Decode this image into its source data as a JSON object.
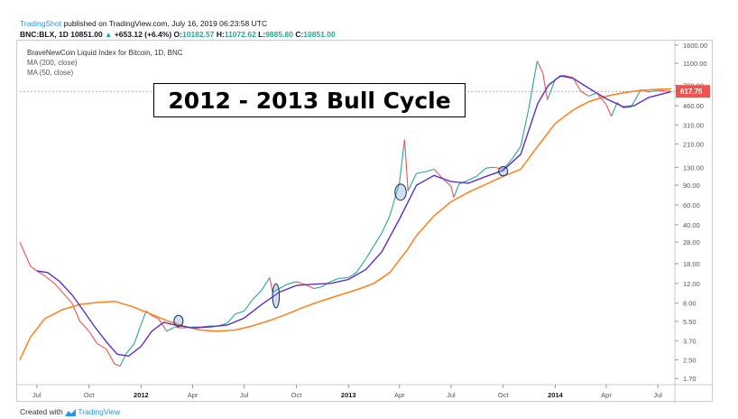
{
  "header": {
    "brand": "TradingShot",
    "published": "published on TradingView.com, July 16, 2019 06:23:58 UTC",
    "symbol": "BNC:BLX, 1D",
    "last": "10851.00",
    "change_arrow": "▲",
    "change": "+653.12 (+6.4%)",
    "o_label": "O:",
    "o_val": "10182.57",
    "h_label": "H:",
    "h_val": "11072.62",
    "l_label": "L:",
    "l_val": "9885.80",
    "c_label": "C:",
    "c_val": "10851.00"
  },
  "legend": {
    "title": "BraveNewCoin Liquid Index for Bitcoin, 1D, BNC",
    "ma200": "MA (200, close)",
    "ma50": "MA (50, close)"
  },
  "banner": "2012 - 2013 Bull Cycle",
  "footer": {
    "created": "Created with",
    "tv": "TradingView"
  },
  "colors": {
    "ma200": "#ff7f1a",
    "ma50": "#5b2ecc",
    "up": "#26a69a",
    "down": "#ef5350",
    "price_label": "#ef5350"
  },
  "chart_data": {
    "type": "line",
    "scale": "log",
    "ylim": [
      1.5,
      1750
    ],
    "y_ticks": [
      1600,
      1100,
      700,
      460,
      310,
      210,
      130,
      90,
      60,
      40,
      28,
      18,
      12,
      8,
      5.5,
      3.7,
      2.5,
      1.7
    ],
    "y_tick_labels": [
      "1600.00",
      "1100.00",
      "700.00",
      "460.00",
      "310.00",
      "210.00",
      "130.00",
      "90.00",
      "60.00",
      "40.00",
      "28.00",
      "18.00",
      "12.00",
      "8.00",
      "5.50",
      "3.70",
      "2.50",
      "1.70"
    ],
    "x_range": [
      "2011-06-01",
      "2014-07-31"
    ],
    "x_ticks": [
      {
        "date": "2011-07-01",
        "label": "Jul",
        "bold": false
      },
      {
        "date": "2011-10-01",
        "label": "Oct",
        "bold": false
      },
      {
        "date": "2012-01-01",
        "label": "2012",
        "bold": true
      },
      {
        "date": "2012-04-01",
        "label": "Apr",
        "bold": false
      },
      {
        "date": "2012-07-01",
        "label": "Jul",
        "bold": false
      },
      {
        "date": "2012-10-01",
        "label": "Oct",
        "bold": false
      },
      {
        "date": "2013-01-01",
        "label": "2013",
        "bold": true
      },
      {
        "date": "2013-04-01",
        "label": "Apr",
        "bold": false
      },
      {
        "date": "2013-07-01",
        "label": "Jul",
        "bold": false
      },
      {
        "date": "2013-10-01",
        "label": "Oct",
        "bold": false
      },
      {
        "date": "2014-01-01",
        "label": "2014",
        "bold": true
      },
      {
        "date": "2014-04-01",
        "label": "Apr",
        "bold": false
      },
      {
        "date": "2014-07-01",
        "label": "Jul",
        "bold": false
      }
    ],
    "last_price_label": "617.75",
    "last_price": 617.75,
    "series": [
      {
        "key": "price",
        "points": [
          [
            "2011-06-01",
            28
          ],
          [
            "2011-06-10",
            22
          ],
          [
            "2011-06-20",
            17
          ],
          [
            "2011-07-01",
            15.5
          ],
          [
            "2011-07-15",
            14
          ],
          [
            "2011-08-01",
            12
          ],
          [
            "2011-08-15",
            10
          ],
          [
            "2011-09-01",
            8
          ],
          [
            "2011-09-15",
            5.5
          ],
          [
            "2011-10-01",
            4.5
          ],
          [
            "2011-10-15",
            3.5
          ],
          [
            "2011-11-01",
            3.1
          ],
          [
            "2011-11-15",
            2.3
          ],
          [
            "2011-11-25",
            2.2
          ],
          [
            "2011-12-05",
            2.8
          ],
          [
            "2011-12-20",
            3.5
          ],
          [
            "2012-01-01",
            5.2
          ],
          [
            "2012-01-10",
            6.8
          ],
          [
            "2012-01-20",
            6.2
          ],
          [
            "2012-02-01",
            5.8
          ],
          [
            "2012-02-15",
            4.5
          ],
          [
            "2012-03-01",
            4.9
          ],
          [
            "2012-03-15",
            4.8
          ],
          [
            "2012-04-01",
            4.9
          ],
          [
            "2012-04-15",
            4.9
          ],
          [
            "2012-05-01",
            5.0
          ],
          [
            "2012-05-15",
            5.0
          ],
          [
            "2012-06-01",
            5.3
          ],
          [
            "2012-06-15",
            6.4
          ],
          [
            "2012-07-01",
            6.8
          ],
          [
            "2012-07-15",
            8.5
          ],
          [
            "2012-08-01",
            10.5
          ],
          [
            "2012-08-15",
            13.5
          ],
          [
            "2012-08-20",
            10
          ],
          [
            "2012-09-01",
            10.8
          ],
          [
            "2012-09-15",
            11.8
          ],
          [
            "2012-10-01",
            12.4
          ],
          [
            "2012-10-15",
            11.8
          ],
          [
            "2012-11-01",
            10.8
          ],
          [
            "2012-11-15",
            11.2
          ],
          [
            "2012-12-01",
            12.5
          ],
          [
            "2012-12-15",
            13.3
          ],
          [
            "2013-01-01",
            13.5
          ],
          [
            "2013-01-15",
            15
          ],
          [
            "2013-02-01",
            20
          ],
          [
            "2013-02-15",
            26
          ],
          [
            "2013-03-01",
            34
          ],
          [
            "2013-03-15",
            48
          ],
          [
            "2013-04-01",
            95
          ],
          [
            "2013-04-10",
            230
          ],
          [
            "2013-04-16",
            80
          ],
          [
            "2013-05-01",
            115
          ],
          [
            "2013-05-15",
            118
          ],
          [
            "2013-06-01",
            125
          ],
          [
            "2013-06-15",
            105
          ],
          [
            "2013-07-01",
            88
          ],
          [
            "2013-07-06",
            70
          ],
          [
            "2013-07-15",
            92
          ],
          [
            "2013-08-01",
            100
          ],
          [
            "2013-08-15",
            108
          ],
          [
            "2013-09-01",
            128
          ],
          [
            "2013-09-15",
            130
          ],
          [
            "2013-10-01",
            125
          ],
          [
            "2013-10-15",
            150
          ],
          [
            "2013-11-01",
            200
          ],
          [
            "2013-11-15",
            430
          ],
          [
            "2013-11-30",
            1150
          ],
          [
            "2013-12-10",
            900
          ],
          [
            "2013-12-18",
            520
          ],
          [
            "2014-01-01",
            790
          ],
          [
            "2014-01-15",
            860
          ],
          [
            "2014-02-01",
            820
          ],
          [
            "2014-02-15",
            620
          ],
          [
            "2014-03-01",
            560
          ],
          [
            "2014-03-15",
            600
          ],
          [
            "2014-04-01",
            470
          ],
          [
            "2014-04-10",
            370
          ],
          [
            "2014-04-20",
            490
          ],
          [
            "2014-05-01",
            440
          ],
          [
            "2014-05-15",
            450
          ],
          [
            "2014-06-01",
            640
          ],
          [
            "2014-06-15",
            610
          ],
          [
            "2014-07-01",
            630
          ],
          [
            "2014-07-15",
            620
          ],
          [
            "2014-07-25",
            617
          ]
        ]
      },
      {
        "key": "ma50",
        "points": [
          [
            "2011-07-01",
            15.5
          ],
          [
            "2011-07-20",
            15
          ],
          [
            "2011-08-10",
            12.5
          ],
          [
            "2011-09-01",
            9.5
          ],
          [
            "2011-09-20",
            7
          ],
          [
            "2011-10-10",
            5
          ],
          [
            "2011-11-01",
            3.6
          ],
          [
            "2011-11-20",
            2.8
          ],
          [
            "2011-12-10",
            2.7
          ],
          [
            "2012-01-01",
            3.3
          ],
          [
            "2012-01-20",
            4.5
          ],
          [
            "2012-02-10",
            5.4
          ],
          [
            "2012-03-01",
            5.1
          ],
          [
            "2012-04-01",
            4.8
          ],
          [
            "2012-05-01",
            4.9
          ],
          [
            "2012-06-01",
            5.1
          ],
          [
            "2012-07-01",
            5.9
          ],
          [
            "2012-08-01",
            7.8
          ],
          [
            "2012-09-01",
            10
          ],
          [
            "2012-10-01",
            11.5
          ],
          [
            "2012-11-01",
            11.8
          ],
          [
            "2012-12-01",
            12
          ],
          [
            "2013-01-01",
            13
          ],
          [
            "2013-02-01",
            16
          ],
          [
            "2013-03-01",
            23
          ],
          [
            "2013-04-01",
            45
          ],
          [
            "2013-05-01",
            90
          ],
          [
            "2013-06-01",
            110
          ],
          [
            "2013-07-01",
            97
          ],
          [
            "2013-08-01",
            94
          ],
          [
            "2013-09-01",
            108
          ],
          [
            "2013-10-01",
            122
          ],
          [
            "2013-11-01",
            170
          ],
          [
            "2013-12-01",
            480
          ],
          [
            "2013-12-20",
            700
          ],
          [
            "2014-01-10",
            850
          ],
          [
            "2014-02-01",
            810
          ],
          [
            "2014-03-01",
            660
          ],
          [
            "2014-04-01",
            530
          ],
          [
            "2014-05-01",
            450
          ],
          [
            "2014-05-20",
            460
          ],
          [
            "2014-06-15",
            545
          ],
          [
            "2014-07-25",
            615
          ]
        ]
      },
      {
        "key": "ma200",
        "points": [
          [
            "2011-06-01",
            2.5
          ],
          [
            "2011-06-20",
            4
          ],
          [
            "2011-07-15",
            5.8
          ],
          [
            "2011-08-15",
            7
          ],
          [
            "2011-09-15",
            7.8
          ],
          [
            "2011-10-15",
            8.1
          ],
          [
            "2011-11-15",
            8.3
          ],
          [
            "2011-12-15",
            7.5
          ],
          [
            "2012-01-15",
            6.5
          ],
          [
            "2012-02-15",
            5.6
          ],
          [
            "2012-03-15",
            5.0
          ],
          [
            "2012-04-15",
            4.6
          ],
          [
            "2012-05-15",
            4.5
          ],
          [
            "2012-06-15",
            4.6
          ],
          [
            "2012-07-15",
            5.0
          ],
          [
            "2012-08-15",
            5.6
          ],
          [
            "2012-09-15",
            6.4
          ],
          [
            "2012-10-15",
            7.4
          ],
          [
            "2012-11-15",
            8.4
          ],
          [
            "2012-12-15",
            9.4
          ],
          [
            "2013-01-15",
            10.5
          ],
          [
            "2013-02-15",
            12
          ],
          [
            "2013-03-15",
            15
          ],
          [
            "2013-04-15",
            24
          ],
          [
            "2013-05-01",
            32
          ],
          [
            "2013-06-01",
            48
          ],
          [
            "2013-07-01",
            64
          ],
          [
            "2013-08-01",
            78
          ],
          [
            "2013-09-01",
            92
          ],
          [
            "2013-10-01",
            108
          ],
          [
            "2013-11-01",
            125
          ],
          [
            "2013-12-01",
            200
          ],
          [
            "2014-01-01",
            320
          ],
          [
            "2014-02-01",
            420
          ],
          [
            "2014-03-01",
            500
          ],
          [
            "2014-04-01",
            560
          ],
          [
            "2014-05-01",
            600
          ],
          [
            "2014-06-01",
            630
          ],
          [
            "2014-07-01",
            645
          ],
          [
            "2014-07-25",
            650
          ]
        ]
      }
    ],
    "annotations": [
      {
        "type": "ellipse",
        "date": "2012-03-07",
        "value": 5.55,
        "rx_days": 8,
        "ry_ratio": 1.12
      },
      {
        "type": "ellipse",
        "date": "2012-08-26",
        "value": 9.3,
        "rx_days": 6,
        "ry_ratio": 1.28
      },
      {
        "type": "ellipse",
        "date": "2013-04-03",
        "value": 78,
        "rx_days": 10,
        "ry_ratio": 1.18
      },
      {
        "type": "ellipse",
        "date": "2013-10-01",
        "value": 120,
        "rx_days": 8,
        "ry_ratio": 1.1
      }
    ]
  }
}
